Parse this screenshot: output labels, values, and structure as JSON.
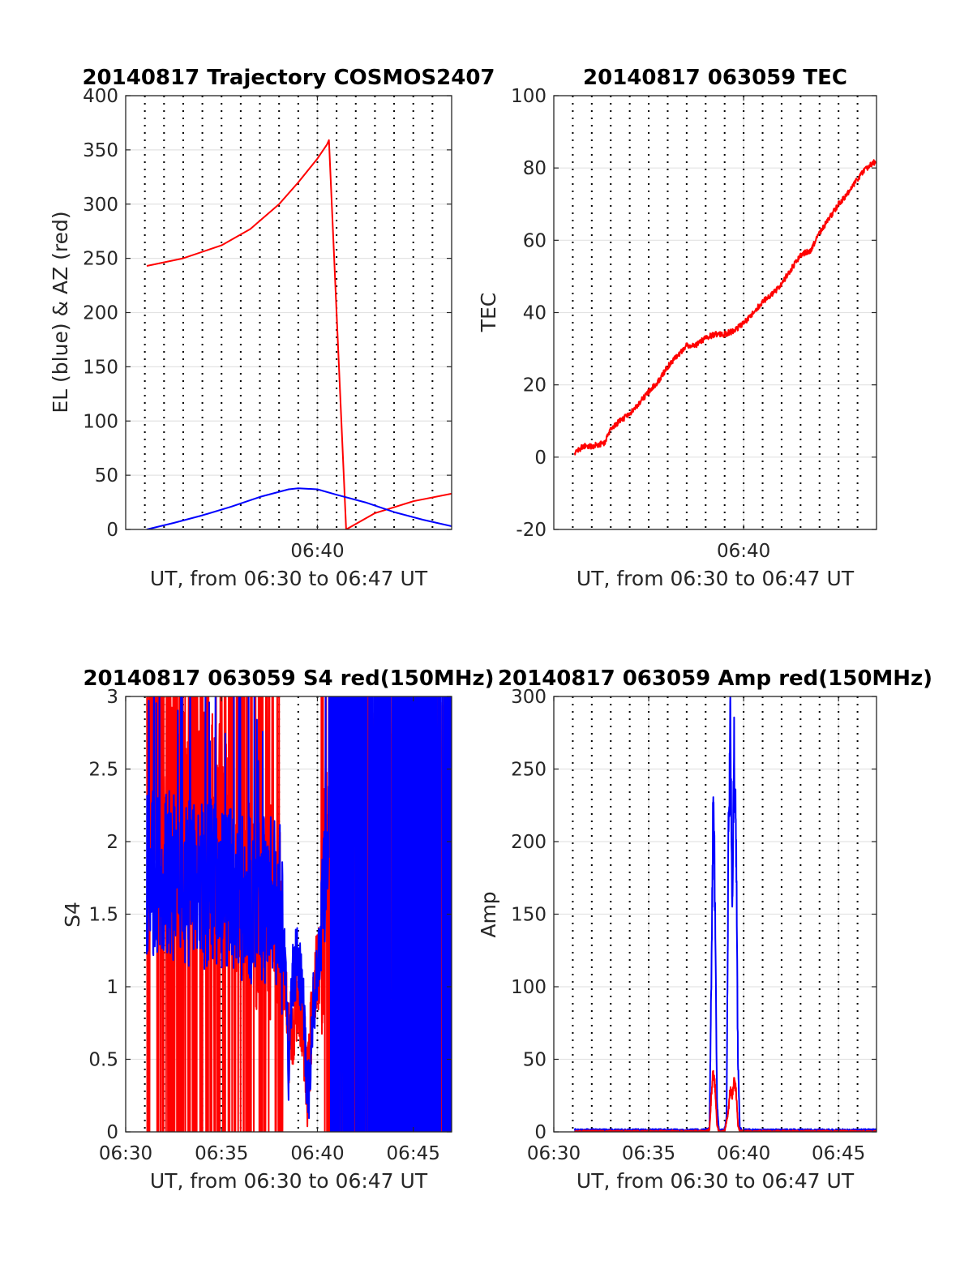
{
  "chart_data": [
    {
      "type": "line",
      "title": "20140817 Trajectory COSMOS2407",
      "xlabel": "UT, from 06:30 to 06:47 UT",
      "ylabel": "EL (blue) & AZ (red)",
      "xlim": [
        30.0,
        47.0
      ],
      "ylim": [
        0,
        400
      ],
      "xticks": [
        {
          "v": 40,
          "label": "06:40"
        }
      ],
      "yticks": [
        0,
        50,
        100,
        150,
        200,
        250,
        300,
        350,
        400
      ],
      "dotted_minute_lines": true,
      "grid": true,
      "series": [
        {
          "color": "#ff0000",
          "style": "az",
          "x": [
            31.1,
            33.0,
            35.0,
            36.5,
            38.0,
            39.0,
            40.0,
            40.5,
            40.6,
            41.5,
            43.0,
            45.0,
            47.0
          ],
          "values": [
            243,
            250,
            262,
            277,
            300,
            320,
            342,
            355,
            359,
            0,
            15,
            26,
            33
          ]
        },
        {
          "color": "#0000ff",
          "style": "el",
          "x": [
            31.1,
            32.5,
            34.0,
            35.5,
            37.0,
            38.5,
            39.0,
            40.0,
            41.0,
            42.5,
            44.0,
            45.5,
            47.0
          ],
          "values": [
            0,
            6,
            13,
            21,
            30,
            37,
            38,
            37,
            32,
            25,
            16,
            9,
            3
          ]
        }
      ]
    },
    {
      "type": "line",
      "title": "20140817 063059 TEC",
      "xlabel": "UT, from 06:30 to 06:47 UT",
      "ylabel": "TEC",
      "xlim": [
        30.0,
        47.0
      ],
      "ylim": [
        -20,
        100
      ],
      "xticks": [
        {
          "v": 40,
          "label": "06:40"
        }
      ],
      "yticks": [
        -20,
        0,
        20,
        40,
        60,
        80,
        100
      ],
      "dotted_minute_lines": true,
      "grid": true,
      "series": [
        {
          "color": "#ff0000",
          "style": "noisy",
          "x": [
            31.1,
            31.5,
            32.0,
            32.7,
            33.0,
            33.5,
            34.0,
            34.5,
            35.0,
            35.5,
            36.0,
            36.5,
            37.0,
            37.5,
            38.0,
            38.5,
            39.0,
            39.5,
            40.0,
            40.5,
            41.0,
            41.5,
            42.0,
            42.5,
            43.0,
            43.5,
            44.0,
            44.5,
            45.0,
            45.5,
            46.0,
            46.5,
            47.0
          ],
          "values": [
            1,
            3,
            3,
            4,
            8,
            10,
            12,
            15,
            18,
            21,
            25,
            28,
            31,
            31,
            33,
            34,
            34,
            35,
            37,
            40,
            43,
            45,
            48,
            52,
            56,
            57,
            62,
            66,
            70,
            73,
            77,
            80,
            82
          ]
        }
      ]
    },
    {
      "type": "line",
      "title": "20140817 063059 S4 red(150MHz)",
      "xlabel": "UT, from 06:30 to 06:47 UT",
      "ylabel": "S4",
      "xlim": [
        30.0,
        47.0
      ],
      "ylim": [
        0,
        3
      ],
      "xticks": [
        {
          "v": 30,
          "label": "06:30"
        },
        {
          "v": 35,
          "label": "06:35"
        },
        {
          "v": 40,
          "label": "06:40"
        },
        {
          "v": 45,
          "label": "06:45"
        }
      ],
      "yticks": [
        0,
        0.5,
        1,
        1.5,
        2,
        2.5,
        3
      ],
      "dotted_minute_lines": true,
      "grid": true,
      "series": [
        {
          "color": "#ff0000",
          "style": "s4red",
          "x": [
            31.1,
            32.0,
            33.0,
            34.0,
            35.0,
            36.0,
            37.0,
            38.0,
            38.3,
            38.5,
            38.8,
            39.0,
            39.3,
            39.5,
            39.8,
            40.2,
            40.5,
            41.0,
            42.0,
            43.0,
            44.0,
            45.0,
            46.0,
            47.0
          ],
          "values": [
            2.5,
            2.4,
            2.3,
            2.2,
            2.0,
            1.8,
            1.6,
            1.5,
            1.0,
            0.6,
            0.8,
            1.0,
            0.6,
            0.3,
            1.0,
            1.2,
            2.0,
            2.2,
            1.8,
            1.6,
            1.4,
            1.3,
            1.2,
            1.0
          ]
        },
        {
          "color": "#0000ff",
          "style": "s4blue",
          "x": [
            31.1,
            32.0,
            33.0,
            34.0,
            35.0,
            36.0,
            37.0,
            38.0,
            38.3,
            38.5,
            38.7,
            39.0,
            39.3,
            39.5,
            39.8,
            40.2,
            40.5,
            41.0,
            42.0,
            43.0,
            44.0,
            45.0,
            46.0,
            47.0
          ],
          "values": [
            1.8,
            1.8,
            1.7,
            1.7,
            1.7,
            1.6,
            1.6,
            1.6,
            1.2,
            0.4,
            1.1,
            1.2,
            0.8,
            0.2,
            0.9,
            1.3,
            2.0,
            1.9,
            1.8,
            1.7,
            1.7,
            1.6,
            1.6,
            1.6
          ]
        }
      ]
    },
    {
      "type": "line",
      "title": "20140817 063059 Amp red(150MHz)",
      "xlabel": "UT, from 06:30 to 06:47 UT",
      "ylabel": "Amp",
      "xlim": [
        30.0,
        47.0
      ],
      "ylim": [
        0,
        300
      ],
      "xticks": [
        {
          "v": 30,
          "label": "06:30"
        },
        {
          "v": 35,
          "label": "06:35"
        },
        {
          "v": 40,
          "label": "06:40"
        },
        {
          "v": 45,
          "label": "06:45"
        }
      ],
      "yticks": [
        0,
        50,
        100,
        150,
        200,
        250,
        300
      ],
      "dotted_minute_lines": true,
      "grid": true,
      "series": [
        {
          "color": "#0000ff",
          "style": "amp",
          "x": [
            31.1,
            37.0,
            38.0,
            38.2,
            38.3,
            38.4,
            38.5,
            38.6,
            38.7,
            39.0,
            39.1,
            39.2,
            39.3,
            39.4,
            39.5,
            39.6,
            39.7,
            39.8,
            40.0,
            42.0,
            47.0
          ],
          "values": [
            1,
            1,
            1,
            2,
            100,
            240,
            150,
            20,
            1,
            1,
            10,
            200,
            270,
            150,
            271,
            200,
            50,
            2,
            1,
            1,
            1
          ]
        },
        {
          "color": "#ff0000",
          "style": "amp",
          "x": [
            31.1,
            38.0,
            38.2,
            38.3,
            38.4,
            38.5,
            38.6,
            38.7,
            39.0,
            39.2,
            39.3,
            39.4,
            39.5,
            39.6,
            39.7,
            39.8,
            47.0
          ],
          "values": [
            0,
            0,
            2,
            25,
            42,
            30,
            5,
            0,
            0,
            15,
            30,
            25,
            36,
            28,
            5,
            0,
            0
          ]
        }
      ]
    }
  ]
}
